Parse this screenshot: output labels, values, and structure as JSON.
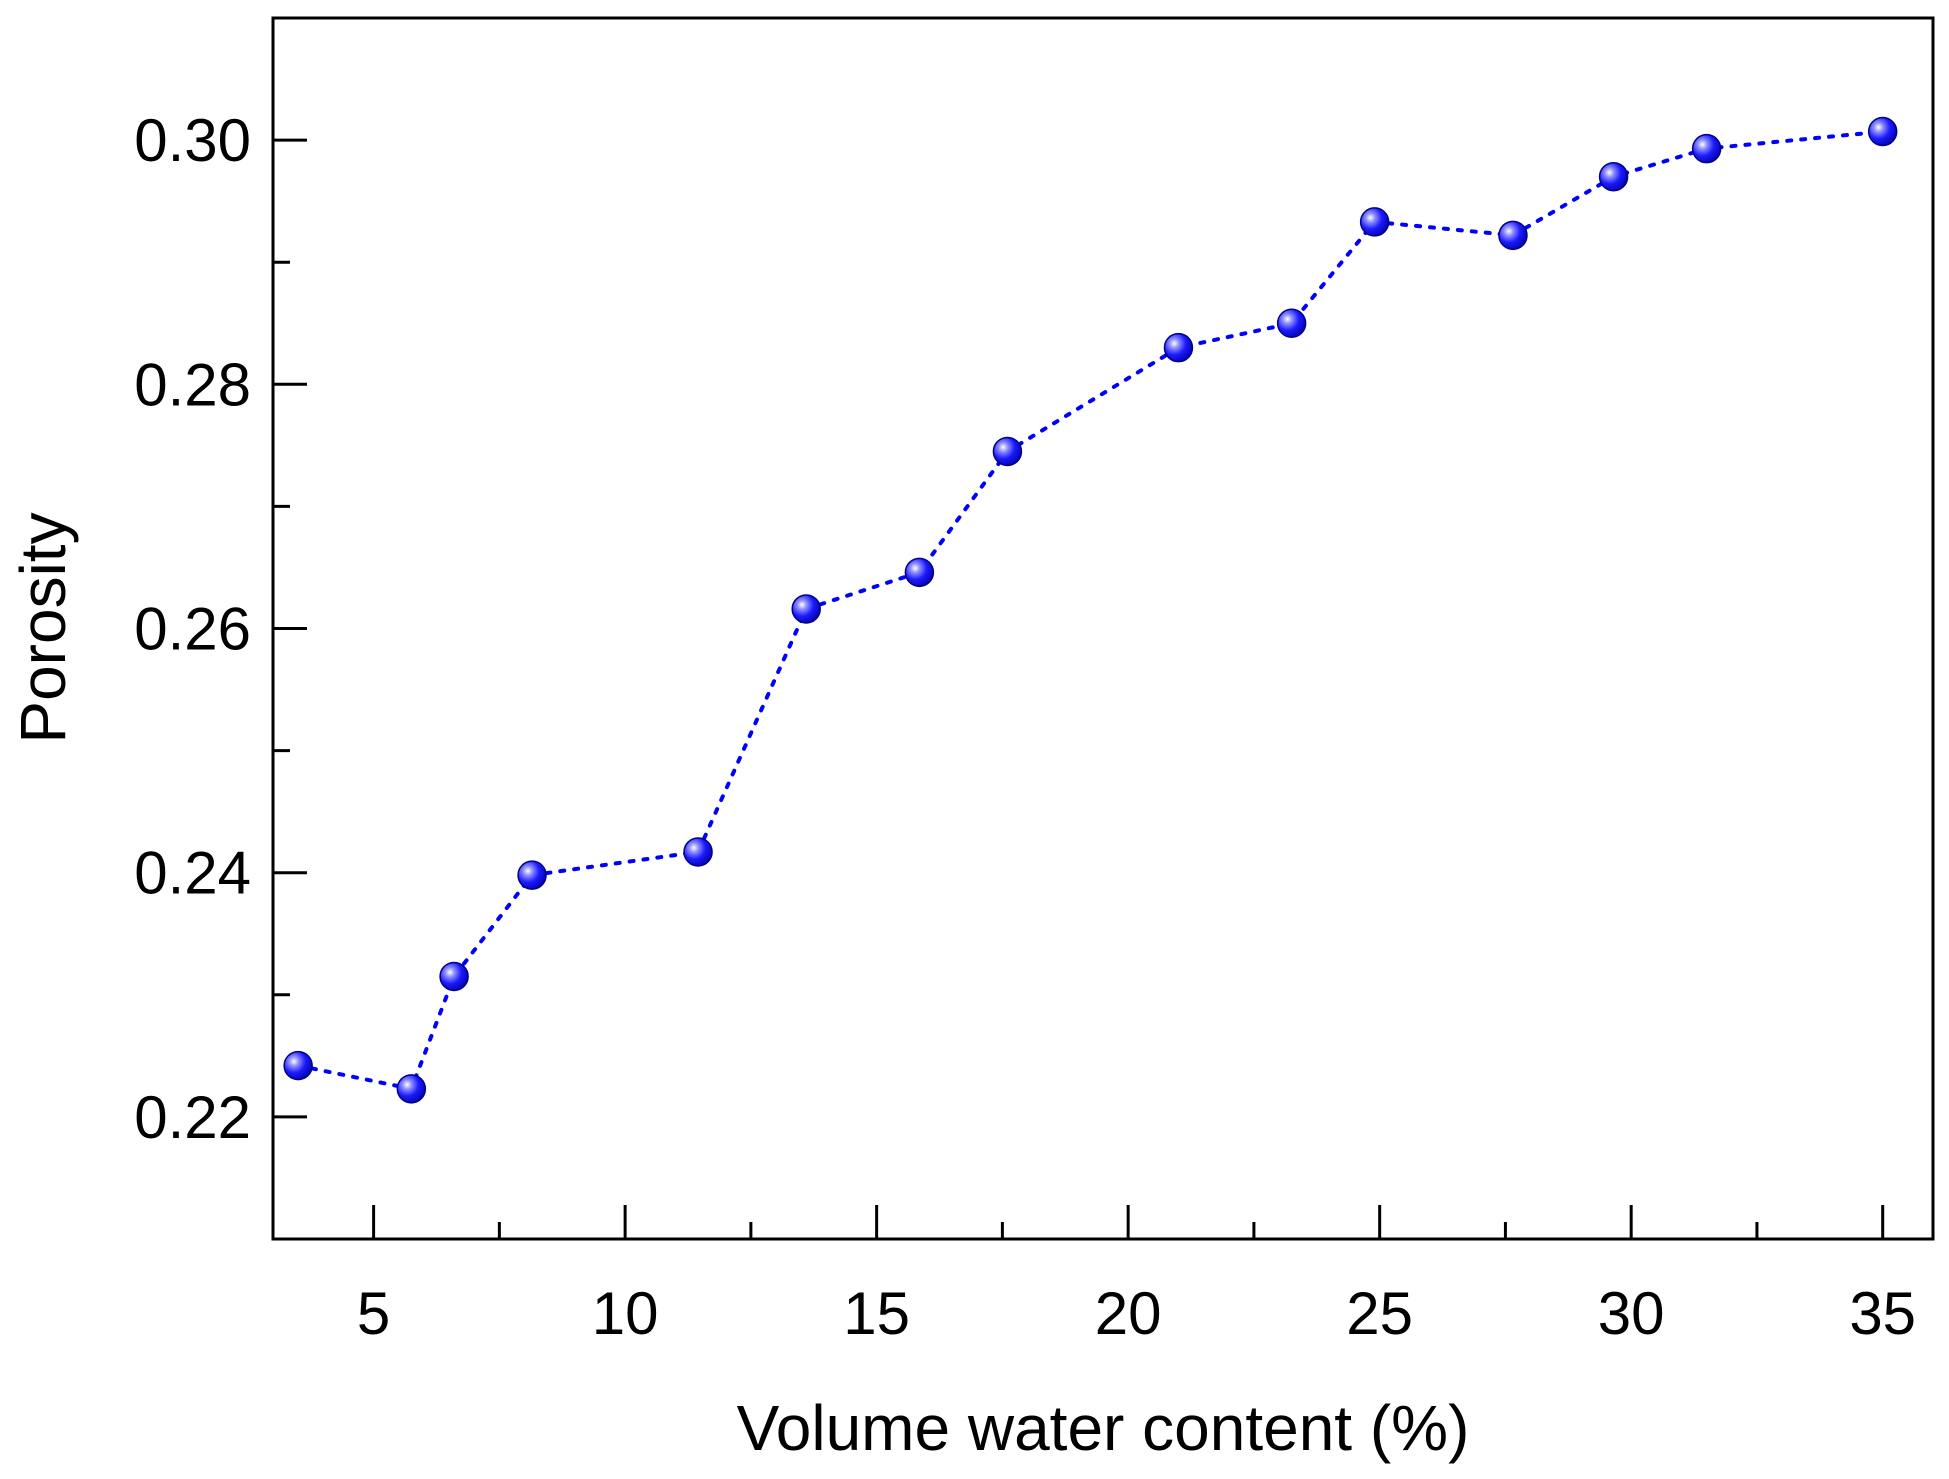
{
  "chart_data": {
    "type": "scatter",
    "xlabel": "Volume water content (%)",
    "ylabel": "Porosity",
    "xlim": [
      3,
      36
    ],
    "ylim": [
      0.21,
      0.31
    ],
    "xticks": [
      5,
      10,
      15,
      20,
      25,
      30,
      35
    ],
    "xtick_labels": [
      "5",
      "10",
      "15",
      "20",
      "25",
      "30",
      "35"
    ],
    "x_minor_ticks": [
      7.5,
      12.5,
      17.5,
      22.5,
      27.5,
      32.5
    ],
    "yticks": [
      0.22,
      0.24,
      0.26,
      0.28,
      0.3
    ],
    "ytick_labels": [
      "0.22",
      "0.24",
      "0.26",
      "0.28",
      "0.30"
    ],
    "y_minor_ticks": [
      0.23,
      0.25,
      0.27,
      0.29
    ],
    "grid": false,
    "line_style": "dotted",
    "series": [
      {
        "color": "#0000ff",
        "x": [
          3.5,
          5.75,
          6.6,
          8.15,
          11.45,
          13.6,
          15.85,
          17.6,
          21.0,
          23.25,
          24.9,
          27.65,
          29.65,
          31.5,
          35.0
        ],
        "y": [
          0.2242,
          0.2223,
          0.2315,
          0.2398,
          0.2417,
          0.2616,
          0.2646,
          0.2745,
          0.283,
          0.285,
          0.2933,
          0.2922,
          0.297,
          0.2993,
          0.3007
        ]
      }
    ]
  }
}
